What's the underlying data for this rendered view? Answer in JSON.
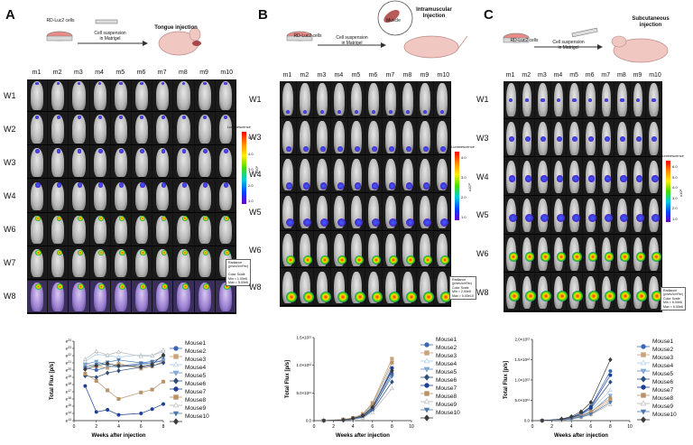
{
  "panels": [
    {
      "letter": "A",
      "dish_label": "RD-Luc2 cells",
      "arrow_label": "Cell suspension\nin Matrigel",
      "injection_title": "Tongue injection",
      "mouse_headers": [
        "m1",
        "m2",
        "m3",
        "m4",
        "m5",
        "m6",
        "m7",
        "m8",
        "m9",
        "m10"
      ],
      "weeks": [
        "W1",
        "W2",
        "W3",
        "W4",
        "W6",
        "W7",
        "W8"
      ],
      "colorbar": {
        "title": "Luminescence",
        "ticks": [
          "5.0",
          "4.0",
          "3.0",
          "2.0",
          "1.0"
        ],
        "scale": "x10⁶",
        "note": "Radiance\n(p/sec/cm²/sr)\n\nColor Scale\nMin = 1.00e6\nMax = 5.00e6"
      },
      "chart_data": {
        "type": "line",
        "xlabel": "Weeks after injection",
        "ylabel": "Total Flux [p/s]",
        "xlim": [
          0,
          8
        ],
        "xticks": [
          0,
          2,
          4,
          6,
          8
        ],
        "yscale": "log",
        "ytick_exponents": [
          13,
          14,
          15,
          16,
          17,
          18,
          19,
          20,
          21,
          22,
          23,
          24
        ],
        "ytick_base": "e",
        "x": [
          1,
          2,
          3,
          4,
          6,
          7,
          8
        ],
        "series": [
          {
            "name": "Mouse1",
            "values": [
              20.3,
              20.0,
              20.4,
              20.6,
              20.9,
              21.0,
              21.3
            ]
          },
          {
            "name": "Mouse2",
            "values": [
              20.9,
              20.5,
              20.3,
              20.9,
              20.2,
              20.5,
              21.2
            ]
          },
          {
            "name": "Mouse3",
            "values": [
              21.2,
              22.2,
              22.0,
              21.8,
              22.1,
              22.0,
              22.6
            ]
          },
          {
            "name": "Mouse4",
            "values": [
              20.8,
              21.2,
              20.6,
              20.4,
              20.8,
              21.0,
              21.4
            ]
          },
          {
            "name": "Mouse5",
            "values": [
              19.2,
              19.0,
              19.6,
              19.9,
              20.4,
              20.6,
              21.0
            ]
          },
          {
            "name": "Mouse6",
            "values": [
              17.8,
              14.2,
              14.5,
              13.8,
              14.0,
              14.6,
              15.3
            ]
          },
          {
            "name": "Mouse7",
            "values": [
              19.5,
              18.5,
              17.2,
              16.0,
              16.9,
              17.3,
              18.4
            ]
          },
          {
            "name": "Mouse8",
            "values": [
              21.5,
              22.6,
              22.1,
              22.5,
              21.9,
              22.0,
              22.8
            ]
          },
          {
            "name": "Mouse9",
            "values": [
              20.4,
              20.8,
              21.1,
              21.4,
              21.0,
              21.2,
              21.8
            ]
          },
          {
            "name": "Mouse10",
            "values": [
              20.1,
              20.6,
              20.9,
              20.6,
              20.5,
              20.8,
              22.1
            ]
          }
        ]
      }
    },
    {
      "letter": "B",
      "dish_label": "RD-Luc2 cells",
      "arrow_label": "Cell suspension\nin Matrigel",
      "injection_title": "Intramuscular\nInjection",
      "muscle_label": "Muscle",
      "mouse_headers": [
        "m1",
        "m2",
        "m3",
        "m4",
        "m5",
        "m6",
        "m7",
        "m8",
        "m9",
        "m10"
      ],
      "weeks": [
        "W1",
        "W3",
        "W4",
        "W5",
        "W6",
        "W8"
      ],
      "colorbar": {
        "title": "Luminescence",
        "ticks": [
          "4.0",
          "3.0",
          "2.0",
          "1.0"
        ],
        "scale": "x10¹⁰",
        "note": "Radiance\n(p/sec/cm²/sr)\nColor Scale\nMin = 2.00e8\nMax = 5.00e10"
      },
      "chart_data": {
        "type": "line",
        "xlabel": "Weeks after injection",
        "ylabel": "Total Flux [p/s]",
        "xlim": [
          0,
          10
        ],
        "xticks": [
          0,
          2,
          4,
          6,
          8,
          10
        ],
        "ylim": [
          0,
          1.5
        ],
        "yticks": [
          "0.0",
          "5.0×10¹¹",
          "1.0×10¹²",
          "1.5×10¹²"
        ],
        "ytick_values": [
          0,
          0.5,
          1.0,
          1.5
        ],
        "yunit": "×10¹²",
        "x": [
          1,
          3,
          4,
          5,
          6,
          8
        ],
        "series": [
          {
            "name": "Mouse1",
            "values": [
              0.0,
              0.01,
              0.03,
              0.07,
              0.2,
              0.85
            ]
          },
          {
            "name": "Mouse2",
            "values": [
              0.0,
              0.02,
              0.05,
              0.12,
              0.32,
              1.12
            ]
          },
          {
            "name": "Mouse3",
            "values": [
              0.0,
              0.01,
              0.04,
              0.1,
              0.27,
              1.0
            ]
          },
          {
            "name": "Mouse4",
            "values": [
              0.0,
              0.01,
              0.03,
              0.09,
              0.25,
              0.92
            ]
          },
          {
            "name": "Mouse5",
            "values": [
              0.0,
              0.01,
              0.02,
              0.06,
              0.18,
              0.7
            ]
          },
          {
            "name": "Mouse6",
            "values": [
              0.0,
              0.01,
              0.03,
              0.08,
              0.22,
              0.95
            ]
          },
          {
            "name": "Mouse7",
            "values": [
              0.0,
              0.02,
              0.05,
              0.11,
              0.3,
              1.05
            ]
          },
          {
            "name": "Mouse8",
            "values": [
              0.0,
              0.01,
              0.02,
              0.05,
              0.15,
              0.58
            ]
          },
          {
            "name": "Mouse9",
            "values": [
              0.0,
              0.01,
              0.03,
              0.08,
              0.21,
              0.8
            ]
          },
          {
            "name": "Mouse10",
            "values": [
              0.0,
              0.01,
              0.04,
              0.09,
              0.24,
              0.9
            ]
          }
        ]
      }
    },
    {
      "letter": "C",
      "dish_label": "RD-Luc2 cells",
      "arrow_label": "Cell suspension\nin Matrigel",
      "injection_title": "Subcutaneous\ninjection",
      "mouse_headers": [
        "m1",
        "m2",
        "m3",
        "m4",
        "m5",
        "m6",
        "m7",
        "m8",
        "m9",
        "m10"
      ],
      "weeks": [
        "W1",
        "W3",
        "W4",
        "W5",
        "W6",
        "W8"
      ],
      "colorbar": {
        "title": "Luminescence",
        "ticks": [
          "6.0",
          "5.0",
          "4.0",
          "3.0",
          "2.0",
          "1.0"
        ],
        "scale": "x10⁸",
        "note": "Radiance\n(p/sec/cm²/sr)\nColor Scale\nMin = 6.00e6\nMax = 6.00e8"
      },
      "chart_data": {
        "type": "line",
        "xlabel": "Weeks after injection",
        "ylabel": "Total Flux [p/s]",
        "xlim": [
          0,
          10
        ],
        "xticks": [
          0,
          2,
          4,
          6,
          8,
          10
        ],
        "ylim": [
          0,
          2.0
        ],
        "yticks": [
          "0.0",
          "5.0×10¹¹",
          "1.0×10¹²",
          "1.5×10¹²",
          "2.0×10¹²"
        ],
        "ytick_values": [
          0,
          0.5,
          1.0,
          1.5,
          2.0
        ],
        "yunit": "×10¹²",
        "x": [
          1,
          3,
          4,
          5,
          6,
          8
        ],
        "series": [
          {
            "name": "Mouse1",
            "values": [
              0.0,
              0.03,
              0.08,
              0.18,
              0.35,
              1.22
            ]
          },
          {
            "name": "Mouse2",
            "values": [
              0.0,
              0.02,
              0.05,
              0.1,
              0.18,
              0.5
            ]
          },
          {
            "name": "Mouse3",
            "values": [
              0.0,
              0.02,
              0.06,
              0.13,
              0.25,
              0.75
            ]
          },
          {
            "name": "Mouse4",
            "values": [
              0.0,
              0.02,
              0.05,
              0.11,
              0.2,
              0.62
            ]
          },
          {
            "name": "Mouse5",
            "values": [
              0.0,
              0.03,
              0.07,
              0.15,
              0.3,
              0.95
            ]
          },
          {
            "name": "Mouse6",
            "values": [
              0.0,
              0.03,
              0.08,
              0.17,
              0.33,
              1.12
            ]
          },
          {
            "name": "Mouse7",
            "values": [
              0.0,
              0.02,
              0.06,
              0.12,
              0.22,
              0.55
            ]
          },
          {
            "name": "Mouse8",
            "values": [
              0.0,
              0.01,
              0.04,
              0.08,
              0.15,
              0.4
            ]
          },
          {
            "name": "Mouse9",
            "values": [
              0.0,
              0.02,
              0.04,
              0.09,
              0.16,
              0.45
            ]
          },
          {
            "name": "Mouse10",
            "values": [
              0.0,
              0.04,
              0.1,
              0.22,
              0.45,
              1.5
            ]
          }
        ]
      }
    }
  ],
  "legend_styles": [
    {
      "name": "Mouse1",
      "color": "#3a66b5",
      "marker": "circle",
      "fill": "#3a66b5"
    },
    {
      "name": "Mouse2",
      "color": "#c9a27a",
      "marker": "square",
      "fill": "#c9a27a"
    },
    {
      "name": "Mouse3",
      "color": "#a9c8e8",
      "marker": "triangle",
      "fill": "#ffffff"
    },
    {
      "name": "Mouse4",
      "color": "#5f8fc9",
      "marker": "triangle-down",
      "fill": "#8fb3dc"
    },
    {
      "name": "Mouse5",
      "color": "#2d4f7f",
      "marker": "diamond",
      "fill": "#2d4f7f"
    },
    {
      "name": "Mouse6",
      "color": "#1f3f96",
      "marker": "circle",
      "fill": "#1f3f96"
    },
    {
      "name": "Mouse7",
      "color": "#b89266",
      "marker": "square",
      "fill": "#b89266"
    },
    {
      "name": "Mouse8",
      "color": "#b5b5b5",
      "marker": "triangle",
      "fill": "#ffffff"
    },
    {
      "name": "Mouse9",
      "color": "#4d78ad",
      "marker": "triangle-down",
      "fill": "#4d78ad"
    },
    {
      "name": "Mouse10",
      "color": "#3b3b3b",
      "marker": "diamond",
      "fill": "#3b3b3b"
    }
  ]
}
